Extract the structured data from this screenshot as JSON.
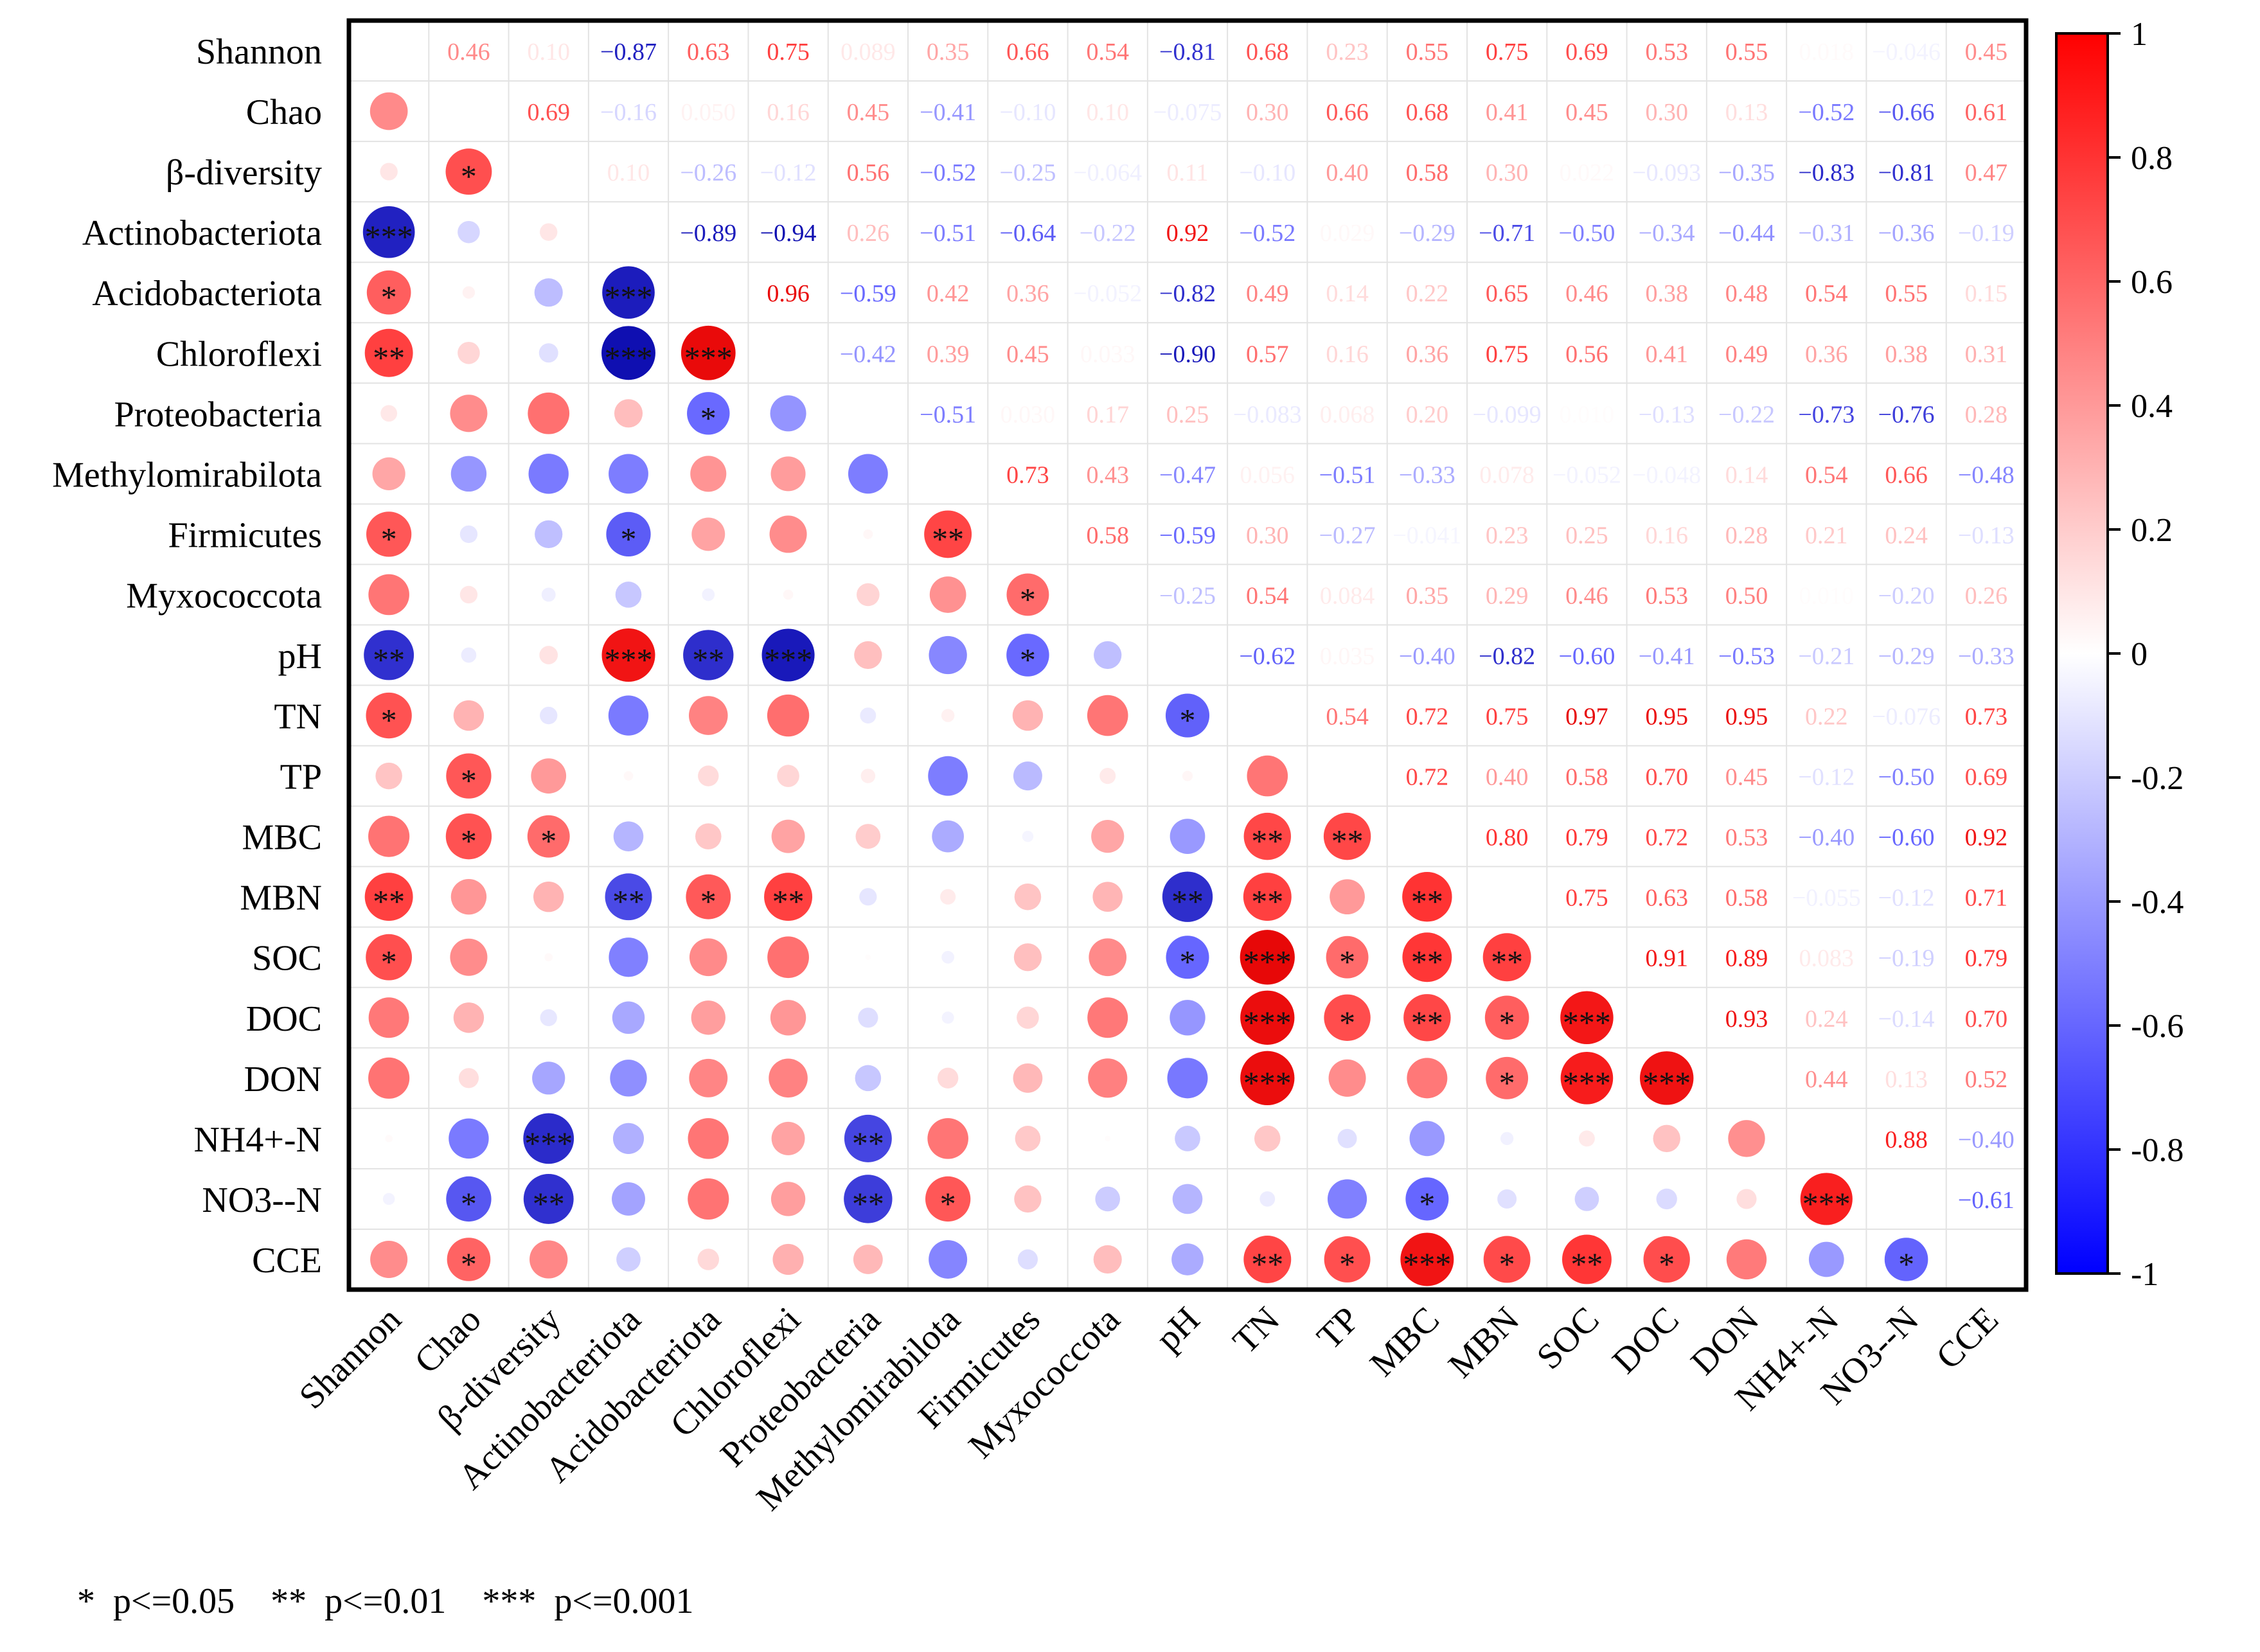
{
  "chart_data": {
    "type": "heatmap",
    "variant": "correlation-matrix (lower triangle: circles + significance stars, upper triangle: coefficients)",
    "variables": [
      "Shannon",
      "Chao",
      "β-diversity",
      "Actinobacteriota",
      "Acidobacteriota",
      "Chloroflexi",
      "Proteobacteria",
      "Methylomirabilota",
      "Firmicutes",
      "Myxococcota",
      "pH",
      "TN",
      "TP",
      "MBC",
      "MBN",
      "SOC",
      "DOC",
      "DON",
      "NH4+-N",
      "NO3--N",
      "CCE"
    ],
    "upper_labels": [
      [
        null,
        "0.46",
        "0.10",
        "-0.87",
        "0.63",
        "0.75",
        "0.089",
        "0.35",
        "0.66",
        "0.54",
        "-0.81",
        "0.68",
        "0.23",
        "0.55",
        "0.75",
        "0.69",
        "0.53",
        "0.55",
        "0.018",
        "-0.046",
        "0.45"
      ],
      [
        null,
        null,
        "0.69",
        "-0.16",
        "0.050",
        "0.16",
        "0.45",
        "-0.41",
        "-0.10",
        "0.10",
        "-0.075",
        "0.30",
        "0.66",
        "0.68",
        "0.41",
        "0.45",
        "0.30",
        "0.13",
        "-0.52",
        "-0.66",
        "0.61"
      ],
      [
        null,
        null,
        null,
        "0.10",
        "-0.26",
        "-0.12",
        "0.56",
        "-0.52",
        "-0.25",
        "-0.064",
        "0.11",
        "-0.10",
        "0.40",
        "0.58",
        "0.30",
        "0.022",
        "-0.093",
        "-0.35",
        "-0.83",
        "-0.81",
        "0.47"
      ],
      [
        null,
        null,
        null,
        null,
        "-0.89",
        "-0.94",
        "0.26",
        "-0.51",
        "-0.64",
        "-0.22",
        "0.92",
        "-0.52",
        "0.029",
        "-0.29",
        "-0.71",
        "-0.50",
        "-0.34",
        "-0.44",
        "-0.31",
        "-0.36",
        "-0.19"
      ],
      [
        null,
        null,
        null,
        null,
        null,
        "0.96",
        "-0.59",
        "0.42",
        "0.36",
        "-0.052",
        "-0.82",
        "0.49",
        "0.14",
        "0.22",
        "0.65",
        "0.46",
        "0.38",
        "0.48",
        "0.54",
        "0.55",
        "0.15"
      ],
      [
        null,
        null,
        null,
        null,
        null,
        null,
        "-0.42",
        "0.39",
        "0.45",
        "0.033",
        "-0.90",
        "0.57",
        "0.16",
        "0.36",
        "0.75",
        "0.56",
        "0.41",
        "0.49",
        "0.36",
        "0.38",
        "0.31"
      ],
      [
        null,
        null,
        null,
        null,
        null,
        null,
        null,
        "-0.51",
        "0.030",
        "0.17",
        "0.25",
        "-0.083",
        "0.068",
        "0.20",
        "-0.099",
        "0.010",
        "-0.13",
        "-0.22",
        "-0.73",
        "-0.76",
        "0.28"
      ],
      [
        null,
        null,
        null,
        null,
        null,
        null,
        null,
        null,
        "0.73",
        "0.43",
        "-0.47",
        "0.056",
        "-0.51",
        "-0.33",
        "0.078",
        "-0.052",
        "-0.048",
        "0.14",
        "0.54",
        "0.66",
        "-0.48"
      ],
      [
        null,
        null,
        null,
        null,
        null,
        null,
        null,
        null,
        null,
        "0.58",
        "-0.59",
        "0.30",
        "-0.27",
        "-0.041",
        "0.23",
        "0.25",
        "0.16",
        "0.28",
        "0.21",
        "0.24",
        "-0.13"
      ],
      [
        null,
        null,
        null,
        null,
        null,
        null,
        null,
        null,
        null,
        null,
        "-0.25",
        "0.54",
        "0.084",
        "0.35",
        "0.29",
        "0.46",
        "0.53",
        "0.50",
        "0.010",
        "-0.20",
        "0.26"
      ],
      [
        null,
        null,
        null,
        null,
        null,
        null,
        null,
        null,
        null,
        null,
        null,
        "-0.62",
        "0.035",
        "-0.40",
        "-0.82",
        "-0.60",
        "-0.41",
        "-0.53",
        "-0.21",
        "-0.29",
        "-0.33"
      ],
      [
        null,
        null,
        null,
        null,
        null,
        null,
        null,
        null,
        null,
        null,
        null,
        null,
        "0.54",
        "0.72",
        "0.75",
        "0.97",
        "0.95",
        "0.95",
        "0.22",
        "-0.076",
        "0.73"
      ],
      [
        null,
        null,
        null,
        null,
        null,
        null,
        null,
        null,
        null,
        null,
        null,
        null,
        null,
        "0.72",
        "0.40",
        "0.58",
        "0.70",
        "0.45",
        "-0.12",
        "-0.50",
        "0.69"
      ],
      [
        null,
        null,
        null,
        null,
        null,
        null,
        null,
        null,
        null,
        null,
        null,
        null,
        null,
        null,
        "0.80",
        "0.79",
        "0.72",
        "0.53",
        "-0.40",
        "-0.60",
        "0.92"
      ],
      [
        null,
        null,
        null,
        null,
        null,
        null,
        null,
        null,
        null,
        null,
        null,
        null,
        null,
        null,
        null,
        "0.75",
        "0.63",
        "0.58",
        "-0.055",
        "-0.12",
        "0.71"
      ],
      [
        null,
        null,
        null,
        null,
        null,
        null,
        null,
        null,
        null,
        null,
        null,
        null,
        null,
        null,
        null,
        null,
        "0.91",
        "0.89",
        "0.083",
        "-0.19",
        "0.79"
      ],
      [
        null,
        null,
        null,
        null,
        null,
        null,
        null,
        null,
        null,
        null,
        null,
        null,
        null,
        null,
        null,
        null,
        null,
        "0.93",
        "0.24",
        "-0.14",
        "0.70"
      ],
      [
        null,
        null,
        null,
        null,
        null,
        null,
        null,
        null,
        null,
        null,
        null,
        null,
        null,
        null,
        null,
        null,
        null,
        null,
        "0.44",
        "0.13",
        "0.52"
      ],
      [
        null,
        null,
        null,
        null,
        null,
        null,
        null,
        null,
        null,
        null,
        null,
        null,
        null,
        null,
        null,
        null,
        null,
        null,
        null,
        "0.88",
        "-0.40"
      ],
      [
        null,
        null,
        null,
        null,
        null,
        null,
        null,
        null,
        null,
        null,
        null,
        null,
        null,
        null,
        null,
        null,
        null,
        null,
        null,
        null,
        "-0.61"
      ],
      [
        null,
        null,
        null,
        null,
        null,
        null,
        null,
        null,
        null,
        null,
        null,
        null,
        null,
        null,
        null,
        null,
        null,
        null,
        null,
        null,
        null
      ]
    ],
    "stars": [
      [
        "",
        "",
        "",
        "",
        "",
        "",
        "",
        "",
        "",
        "",
        "",
        "",
        "",
        "",
        "",
        "",
        "",
        "",
        "",
        "",
        ""
      ],
      [
        "",
        "",
        "",
        "",
        "",
        "",
        "",
        "",
        "",
        "",
        "",
        "",
        "",
        "",
        "",
        "",
        "",
        "",
        "",
        "",
        ""
      ],
      [
        "",
        "*",
        "",
        "",
        "",
        "",
        "",
        "",
        "",
        "",
        "",
        "",
        "",
        "",
        "",
        "",
        "",
        "",
        "",
        "",
        ""
      ],
      [
        "***",
        "",
        "",
        "",
        "",
        "",
        "",
        "",
        "",
        "",
        "",
        "",
        "",
        "",
        "",
        "",
        "",
        "",
        "",
        "",
        ""
      ],
      [
        "*",
        "",
        "",
        "***",
        "",
        "",
        "",
        "",
        "",
        "",
        "",
        "",
        "",
        "",
        "",
        "",
        "",
        "",
        "",
        "",
        ""
      ],
      [
        "**",
        "",
        "",
        "***",
        "***",
        "",
        "",
        "",
        "",
        "",
        "",
        "",
        "",
        "",
        "",
        "",
        "",
        "",
        "",
        "",
        ""
      ],
      [
        "",
        "",
        "",
        "",
        "*",
        "",
        "",
        "",
        "",
        "",
        "",
        "",
        "",
        "",
        "",
        "",
        "",
        "",
        "",
        "",
        ""
      ],
      [
        "",
        "",
        "",
        "",
        "",
        "",
        "",
        "",
        "",
        "",
        "",
        "",
        "",
        "",
        "",
        "",
        "",
        "",
        "",
        "",
        ""
      ],
      [
        "*",
        "",
        "",
        "*",
        "",
        "",
        "",
        "**",
        "",
        "",
        "",
        "",
        "",
        "",
        "",
        "",
        "",
        "",
        "",
        "",
        ""
      ],
      [
        "",
        "",
        "",
        "",
        "",
        "",
        "",
        "",
        "*",
        "",
        "",
        "",
        "",
        "",
        "",
        "",
        "",
        "",
        "",
        "",
        ""
      ],
      [
        "**",
        "",
        "",
        "***",
        "**",
        "***",
        "",
        "",
        "*",
        "",
        "",
        "",
        "",
        "",
        "",
        "",
        "",
        "",
        "",
        "",
        ""
      ],
      [
        "*",
        "",
        "",
        "",
        "",
        "",
        "",
        "",
        "",
        "",
        "*",
        "",
        "",
        "",
        "",
        "",
        "",
        "",
        "",
        "",
        ""
      ],
      [
        "",
        "*",
        "",
        "",
        "",
        "",
        "",
        "",
        "",
        "",
        "",
        "",
        "",
        "",
        "",
        "",
        "",
        "",
        "",
        "",
        ""
      ],
      [
        "",
        "*",
        "*",
        "",
        "",
        "",
        "",
        "",
        "",
        "",
        "",
        "**",
        "**",
        "",
        "",
        "",
        "",
        "",
        "",
        "",
        ""
      ],
      [
        "**",
        "",
        "",
        "**",
        "*",
        "**",
        "",
        "",
        "",
        "",
        "**",
        "**",
        "",
        "**",
        "",
        "",
        "",
        "",
        "",
        "",
        ""
      ],
      [
        "*",
        "",
        "",
        "",
        "",
        "",
        "",
        "",
        "",
        "",
        "*",
        "***",
        "*",
        "**",
        "**",
        "",
        "",
        "",
        "",
        "",
        ""
      ],
      [
        "",
        "",
        "",
        "",
        "",
        "",
        "",
        "",
        "",
        "",
        "",
        "***",
        "*",
        "**",
        "*",
        "***",
        "",
        "",
        "",
        "",
        ""
      ],
      [
        "",
        "",
        "",
        "",
        "",
        "",
        "",
        "",
        "",
        "",
        "",
        "***",
        "",
        "",
        "*",
        "***",
        "***",
        "",
        "",
        "",
        ""
      ],
      [
        "",
        "",
        "***",
        "",
        "",
        "",
        "**",
        "",
        "",
        "",
        "",
        "",
        "",
        "",
        "",
        "",
        "",
        "",
        "",
        "",
        ""
      ],
      [
        "",
        "*",
        "**",
        "",
        "",
        "",
        "**",
        "*",
        "",
        "",
        "",
        "",
        "",
        "*",
        "",
        "",
        "",
        "",
        "***",
        "",
        ""
      ],
      [
        "",
        "*",
        "",
        "",
        "",
        "",
        "",
        "",
        "",
        "",
        "",
        "**",
        "*",
        "***",
        "*",
        "**",
        "*",
        "",
        "",
        "*",
        ""
      ]
    ],
    "color_scale": {
      "min": -1,
      "max": 1,
      "colors": {
        "negative": "#0000ff",
        "zero": "#ffffff",
        "positive": "#ff0000"
      },
      "ticks": [
        "1",
        "0.8",
        "0.6",
        "0.4",
        "0.2",
        "0",
        "-0.2",
        "-0.4",
        "-0.6",
        "-0.8",
        "-1"
      ]
    },
    "significance_legend": "*  p<=0.05    **  p<=0.01    ***  p<=0.001"
  }
}
